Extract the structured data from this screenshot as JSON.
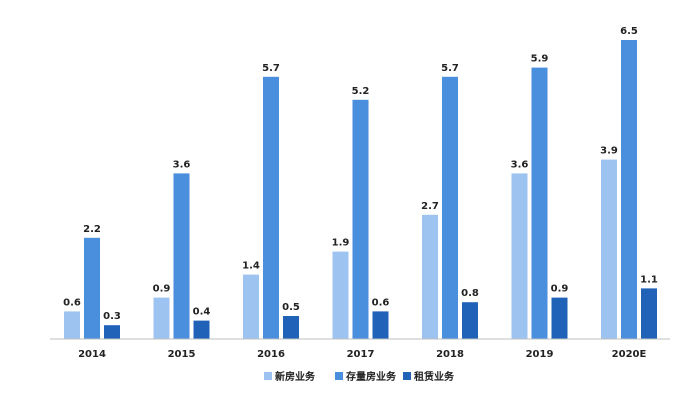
{
  "chart_data": {
    "type": "bar",
    "title": "",
    "xlabel": "",
    "ylabel": "",
    "ylim": [
      0,
      6.8
    ],
    "grid": false,
    "legend_position": "bottom",
    "categories": [
      "2014",
      "2015",
      "2016",
      "2017",
      "2018",
      "2019",
      "2020E"
    ],
    "series": [
      {
        "name": "新房业务",
        "color": "#9DC3F0",
        "values": [
          0.6,
          0.9,
          1.4,
          1.9,
          2.7,
          3.6,
          3.9
        ]
      },
      {
        "name": "存量房业务",
        "color": "#4A8EDE",
        "values": [
          2.2,
          3.6,
          5.7,
          5.2,
          5.7,
          5.9,
          6.5
        ]
      },
      {
        "name": "租赁业务",
        "color": "#2062B8",
        "values": [
          0.3,
          0.4,
          0.5,
          0.6,
          0.8,
          0.9,
          1.1
        ]
      }
    ]
  }
}
